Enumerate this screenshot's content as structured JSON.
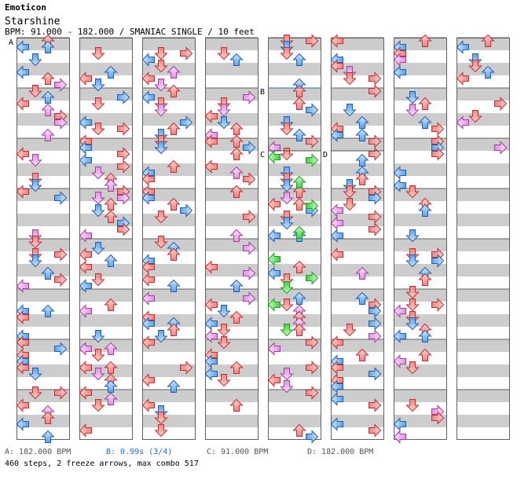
{
  "artist": "Emoticon",
  "title": "Starshine",
  "info": "BPM: 91.000 - 182.000 / SMANIAC SINGLE / 10 feet",
  "markers": {
    "A": "A",
    "B": "B",
    "C": "C",
    "D": "D"
  },
  "legend": {
    "A": {
      "text": "A: 182.000 BPM",
      "color": "#555555"
    },
    "B": {
      "text": "B: 0.99s (3/4)",
      "color": "#1e6fd0"
    },
    "C": {
      "text": "C: 91.000 BPM",
      "color": "#555555"
    },
    "D": {
      "text": "D: 182.000 BPM",
      "color": "#555555"
    }
  },
  "summary": "460 steps, 2 freeze arrows, max combo 517",
  "colors": {
    "quarter": "#f0a0a0",
    "eighth": "#7fb8f0",
    "sixteenth": "#f0b8f0",
    "freeze": "#66e066",
    "stripe": "#cccccc"
  },
  "columns": 8,
  "measures_per_column": 8,
  "arrow_directions": [
    "left",
    "down",
    "up",
    "right"
  ]
}
